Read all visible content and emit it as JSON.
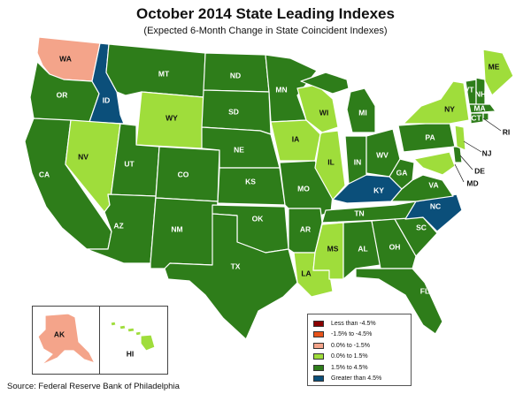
{
  "title": "October 2014 State Leading Indexes",
  "subtitle": "(Expected 6-Month Change in State Coincident Indexes)",
  "source": "Source: Federal Reserve Bank of Philadelphia",
  "colors": {
    "less_than_-4.5": "#8b0000",
    "-1.5_to_-4.5": "#e8531b",
    "0.0_to_-1.5": "#f4a48a",
    "0.0_to_1.5": "#9fdd3b",
    "1.5_to_4.5": "#2e7d1a",
    "greater_than_4.5": "#0b4f7a"
  },
  "legend": [
    {
      "label": "Less than -4.5%",
      "color": "#8b0000"
    },
    {
      "label": "-1.5% to -4.5%",
      "color": "#e8531b"
    },
    {
      "label": "0.0% to -1.5%",
      "color": "#f4a48a"
    },
    {
      "label": "0.0% to  1.5%",
      "color": "#9fdd3b"
    },
    {
      "label": "1.5% to  4.5%",
      "color": "#2e7d1a"
    },
    {
      "label": "Greater than 4.5%",
      "color": "#0b4f7a"
    }
  ],
  "states": [
    {
      "abbr": "WA",
      "category": "0.0% to -1.5%"
    },
    {
      "abbr": "OR",
      "category": "1.5% to 4.5%"
    },
    {
      "abbr": "CA",
      "category": "1.5% to 4.5%"
    },
    {
      "abbr": "ID",
      "category": "Greater than 4.5%"
    },
    {
      "abbr": "NV",
      "category": "0.0% to 1.5%"
    },
    {
      "abbr": "MT",
      "category": "1.5% to 4.5%"
    },
    {
      "abbr": "WY",
      "category": "0.0% to 1.5%"
    },
    {
      "abbr": "UT",
      "category": "1.5% to 4.5%"
    },
    {
      "abbr": "AZ",
      "category": "1.5% to 4.5%"
    },
    {
      "abbr": "CO",
      "category": "1.5% to 4.5%"
    },
    {
      "abbr": "NM",
      "category": "1.5% to 4.5%"
    },
    {
      "abbr": "ND",
      "category": "1.5% to 4.5%"
    },
    {
      "abbr": "SD",
      "category": "1.5% to 4.5%"
    },
    {
      "abbr": "NE",
      "category": "1.5% to 4.5%"
    },
    {
      "abbr": "KS",
      "category": "1.5% to 4.5%"
    },
    {
      "abbr": "OK",
      "category": "1.5% to 4.5%"
    },
    {
      "abbr": "TX",
      "category": "1.5% to 4.5%"
    },
    {
      "abbr": "MN",
      "category": "1.5% to 4.5%"
    },
    {
      "abbr": "IA",
      "category": "0.0% to 1.5%"
    },
    {
      "abbr": "MO",
      "category": "1.5% to 4.5%"
    },
    {
      "abbr": "AR",
      "category": "1.5% to 4.5%"
    },
    {
      "abbr": "LA",
      "category": "0.0% to 1.5%"
    },
    {
      "abbr": "WI",
      "category": "0.0% to 1.5%"
    },
    {
      "abbr": "IL",
      "category": "0.0% to 1.5%"
    },
    {
      "abbr": "MS",
      "category": "0.0% to 1.5%"
    },
    {
      "abbr": "MI",
      "category": "1.5% to 4.5%"
    },
    {
      "abbr": "IN",
      "category": "1.5% to 4.5%"
    },
    {
      "abbr": "KY",
      "category": "Greater than 4.5%"
    },
    {
      "abbr": "TN",
      "category": "1.5% to 4.5%"
    },
    {
      "abbr": "AL",
      "category": "1.5% to 4.5%"
    },
    {
      "abbr": "OH",
      "category": "1.5% to 4.5%"
    },
    {
      "abbr": "WV",
      "category": "1.5% to 4.5%"
    },
    {
      "abbr": "GA",
      "category": "1.5% to 4.5%"
    },
    {
      "abbr": "FL",
      "category": "1.5% to 4.5%"
    },
    {
      "abbr": "SC",
      "category": "1.5% to 4.5%"
    },
    {
      "abbr": "NC",
      "category": "Greater than 4.5%"
    },
    {
      "abbr": "VA",
      "category": "1.5% to 4.5%"
    },
    {
      "abbr": "PA",
      "category": "1.5% to 4.5%"
    },
    {
      "abbr": "NY",
      "category": "0.0% to 1.5%"
    },
    {
      "abbr": "VT",
      "category": "1.5% to 4.5%"
    },
    {
      "abbr": "NH",
      "category": "1.5% to 4.5%"
    },
    {
      "abbr": "ME",
      "category": "0.0% to 1.5%"
    },
    {
      "abbr": "MA",
      "category": "1.5% to 4.5%"
    },
    {
      "abbr": "CT",
      "category": "1.5% to 4.5%"
    },
    {
      "abbr": "RI",
      "category": "1.5% to 4.5%"
    },
    {
      "abbr": "NJ",
      "category": "0.0% to 1.5%"
    },
    {
      "abbr": "DE",
      "category": "1.5% to 4.5%"
    },
    {
      "abbr": "MD",
      "category": "0.0% to 1.5%"
    },
    {
      "abbr": "AK",
      "category": "0.0% to -1.5%"
    },
    {
      "abbr": "HI",
      "category": "0.0% to 1.5%"
    }
  ]
}
